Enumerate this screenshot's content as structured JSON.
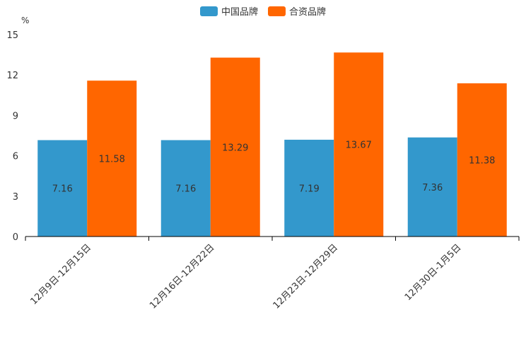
{
  "chart_data": {
    "type": "bar",
    "unit_label": "%",
    "categories": [
      "12月9日-12月15日",
      "12月16日-12月22日",
      "12月23日-12月29日",
      "12月30日-1月5日"
    ],
    "series": [
      {
        "name": "中国品牌",
        "color": "#3398cc",
        "values": [
          7.16,
          7.16,
          7.19,
          7.36
        ]
      },
      {
        "name": "合资品牌",
        "color": "#ff6600",
        "values": [
          11.58,
          13.29,
          13.67,
          11.38
        ]
      }
    ],
    "ylim": [
      0,
      15
    ],
    "yticks": [
      0,
      3,
      6,
      9,
      12,
      15
    ],
    "legend_position": "top-center",
    "grid": false
  }
}
